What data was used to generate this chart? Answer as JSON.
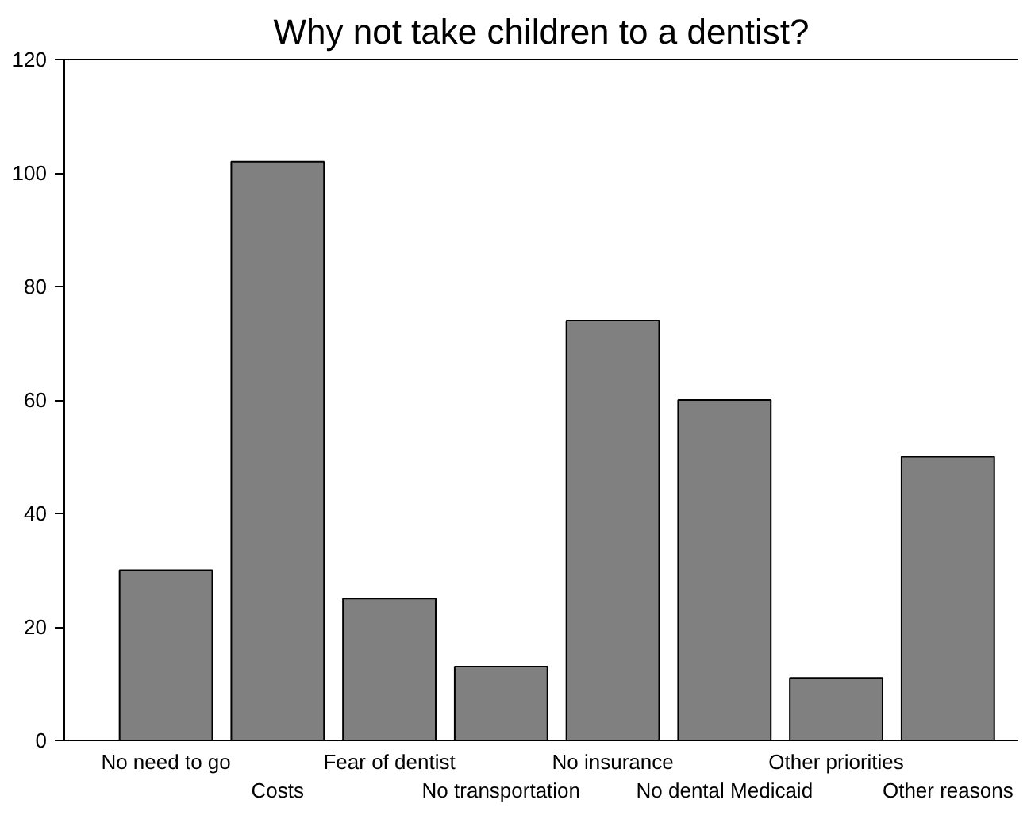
{
  "chart_data": {
    "type": "bar",
    "title": "Why not take children to a dentist?",
    "categories": [
      "No need to go",
      "Costs",
      "Fear of dentist",
      "No transportation",
      "No insurance",
      "No dental Medicaid",
      "Other priorities",
      "Other reasons"
    ],
    "values": [
      30,
      102,
      25,
      13,
      74,
      60,
      11,
      50
    ],
    "color": "#808080",
    "ylim": [
      0,
      120
    ],
    "yticks": [
      0,
      20,
      40,
      60,
      80,
      100,
      120
    ],
    "grid": false
  }
}
